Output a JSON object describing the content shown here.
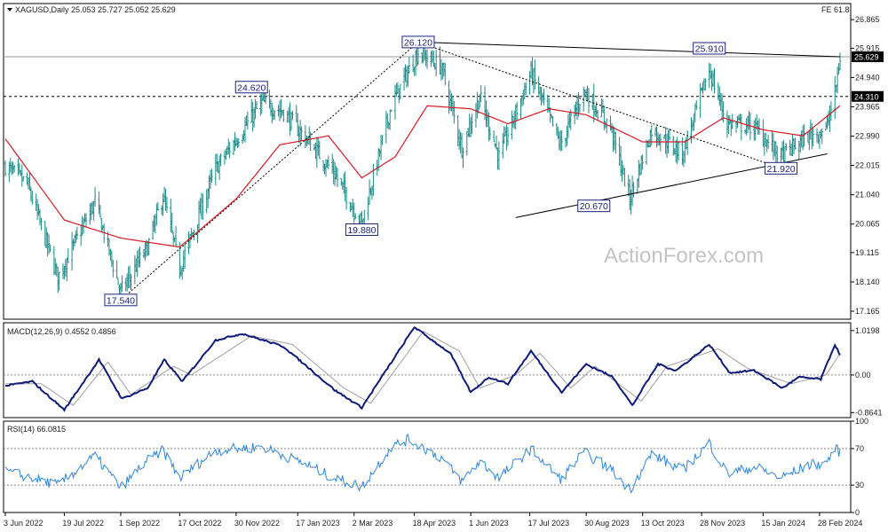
{
  "header": {
    "symbol_line": "XAGUSD,Daily  25.053 25.727 25.052 25.629",
    "fe_label": "FE 61.8",
    "watermark": "ActionForex.com"
  },
  "colors": {
    "bars": "#1e8a88",
    "ma": "#d81b24",
    "macd_line": "#0d1a7a",
    "macd_signal": "#a0a0a0",
    "rsi": "#2e86de",
    "trendline": "#000000",
    "label_border": "#1a237e",
    "label_bg": "#ffffff",
    "current_price_bg": "#000000"
  },
  "chart_data": [
    {
      "type": "candlestick",
      "panel": "price",
      "title": "XAGUSD,Daily",
      "y_ticks": [
        26.865,
        25.915,
        24.94,
        23.965,
        22.99,
        22.015,
        21.04,
        20.065,
        19.115,
        18.14,
        17.165
      ],
      "ylim": [
        16.9,
        27.4
      ],
      "x_ticks": [
        "3 Jun 2022",
        "19 Jul 2022",
        "1 Sep 2022",
        "17 Oct 2022",
        "30 Nov 2022",
        "17 Jan 2023",
        "2 Mar 2023",
        "18 Apr 2023",
        "1 Jun 2023",
        "17 Jul 2023",
        "30 Aug 2023",
        "13 Oct 2023",
        "28 Nov 2023",
        "15 Jan 2024",
        "28 Feb 2024"
      ],
      "current_price": 25.629,
      "horizontal_levels": [
        {
          "value": 24.31,
          "style": "dashed"
        },
        {
          "value": 25.629,
          "style": "solid"
        }
      ],
      "annotations": [
        {
          "label": "17.540",
          "date": "2022-09-01",
          "value": 17.54
        },
        {
          "label": "24.620",
          "date": "2022-12-12",
          "value": 24.62
        },
        {
          "label": "19.880",
          "date": "2023-03-08",
          "value": 19.88
        },
        {
          "label": "26.120",
          "date": "2023-04-21",
          "value": 26.12
        },
        {
          "label": "20.670",
          "date": "2023-09-05",
          "value": 20.67
        },
        {
          "label": "25.910",
          "date": "2023-12-04",
          "value": 25.91
        },
        {
          "label": "21.920",
          "date": "2024-01-29",
          "value": 21.92
        }
      ],
      "trendlines": [
        {
          "style": "solid",
          "from": {
            "date": "2023-04-21",
            "value": 26.12
          },
          "to": {
            "date": "2024-03-15",
            "value": 25.63
          }
        },
        {
          "style": "solid",
          "from": {
            "date": "2023-07-06",
            "value": 20.28
          },
          "to": {
            "date": "2024-03-05",
            "value": 22.4
          }
        },
        {
          "style": "dotted",
          "from": {
            "date": "2022-09-01",
            "value": 17.54
          },
          "to": {
            "date": "2023-04-21",
            "value": 26.12
          }
        },
        {
          "style": "dotted",
          "from": {
            "date": "2023-04-21",
            "value": 26.12
          },
          "to": {
            "date": "2024-01-29",
            "value": 21.92
          }
        }
      ],
      "price_anchors": [
        {
          "date": "2022-06-03",
          "value": 22.0
        },
        {
          "date": "2022-06-20",
          "value": 21.4
        },
        {
          "date": "2022-07-14",
          "value": 18.3
        },
        {
          "date": "2022-08-12",
          "value": 20.8
        },
        {
          "date": "2022-09-01",
          "value": 17.8
        },
        {
          "date": "2022-09-22",
          "value": 19.3
        },
        {
          "date": "2022-10-04",
          "value": 21.0
        },
        {
          "date": "2022-10-17",
          "value": 18.6
        },
        {
          "date": "2022-11-14",
          "value": 21.9
        },
        {
          "date": "2022-12-20",
          "value": 24.1
        },
        {
          "date": "2023-01-06",
          "value": 23.8
        },
        {
          "date": "2023-02-14",
          "value": 21.8
        },
        {
          "date": "2023-03-08",
          "value": 20.1
        },
        {
          "date": "2023-03-31",
          "value": 24.0
        },
        {
          "date": "2023-04-21",
          "value": 25.8
        },
        {
          "date": "2023-05-09",
          "value": 25.3
        },
        {
          "date": "2023-05-25",
          "value": 22.6
        },
        {
          "date": "2023-06-08",
          "value": 24.3
        },
        {
          "date": "2023-06-23",
          "value": 22.3
        },
        {
          "date": "2023-07-18",
          "value": 25.1
        },
        {
          "date": "2023-08-10",
          "value": 22.7
        },
        {
          "date": "2023-08-28",
          "value": 24.5
        },
        {
          "date": "2023-09-18",
          "value": 23.3
        },
        {
          "date": "2023-10-03",
          "value": 20.9
        },
        {
          "date": "2023-10-20",
          "value": 23.2
        },
        {
          "date": "2023-11-13",
          "value": 22.4
        },
        {
          "date": "2023-12-04",
          "value": 25.2
        },
        {
          "date": "2023-12-18",
          "value": 23.4
        },
        {
          "date": "2024-01-08",
          "value": 23.3
        },
        {
          "date": "2024-01-29",
          "value": 22.3
        },
        {
          "date": "2024-02-19",
          "value": 23.0
        },
        {
          "date": "2024-03-04",
          "value": 23.2
        },
        {
          "date": "2024-03-11",
          "value": 24.4
        },
        {
          "date": "2024-03-15",
          "value": 25.6
        }
      ],
      "series": [
        {
          "name": "",
          "type": "moving_average",
          "values_anchors": [
            {
              "date": "2022-06-03",
              "value": 22.9
            },
            {
              "date": "2022-07-19",
              "value": 20.2
            },
            {
              "date": "2022-09-01",
              "value": 19.6
            },
            {
              "date": "2022-10-17",
              "value": 19.3
            },
            {
              "date": "2022-11-30",
              "value": 20.9
            },
            {
              "date": "2023-01-03",
              "value": 22.7
            },
            {
              "date": "2023-02-10",
              "value": 23.0
            },
            {
              "date": "2023-03-08",
              "value": 21.6
            },
            {
              "date": "2023-04-03",
              "value": 22.3
            },
            {
              "date": "2023-04-28",
              "value": 24.0
            },
            {
              "date": "2023-06-01",
              "value": 23.9
            },
            {
              "date": "2023-06-30",
              "value": 23.4
            },
            {
              "date": "2023-08-01",
              "value": 23.9
            },
            {
              "date": "2023-08-30",
              "value": 23.7
            },
            {
              "date": "2023-10-13",
              "value": 22.8
            },
            {
              "date": "2023-11-15",
              "value": 22.8
            },
            {
              "date": "2023-12-15",
              "value": 23.6
            },
            {
              "date": "2024-01-15",
              "value": 23.2
            },
            {
              "date": "2024-02-15",
              "value": 23.0
            },
            {
              "date": "2024-03-15",
              "value": 24.0
            }
          ]
        }
      ]
    },
    {
      "type": "line",
      "panel": "macd",
      "title": "MACD(12,26,9) 0.4552 0.4856",
      "y_ticks": [
        1.0198,
        0.0,
        -0.8641
      ],
      "ylim": [
        -0.98,
        1.2
      ],
      "series": [
        {
          "name": "MACD",
          "values_anchors": [
            {
              "date": "2022-06-03",
              "value": -0.25
            },
            {
              "date": "2022-06-24",
              "value": -0.15
            },
            {
              "date": "2022-07-19",
              "value": -0.8
            },
            {
              "date": "2022-08-15",
              "value": 0.35
            },
            {
              "date": "2022-09-02",
              "value": -0.55
            },
            {
              "date": "2022-09-22",
              "value": -0.3
            },
            {
              "date": "2022-10-05",
              "value": 0.35
            },
            {
              "date": "2022-10-19",
              "value": -0.15
            },
            {
              "date": "2022-11-14",
              "value": 0.8
            },
            {
              "date": "2022-12-05",
              "value": 0.95
            },
            {
              "date": "2023-01-06",
              "value": 0.65
            },
            {
              "date": "2023-02-15",
              "value": -0.35
            },
            {
              "date": "2023-03-08",
              "value": -0.75
            },
            {
              "date": "2023-04-18",
              "value": 1.1
            },
            {
              "date": "2023-05-16",
              "value": 0.5
            },
            {
              "date": "2023-06-01",
              "value": -0.4
            },
            {
              "date": "2023-06-15",
              "value": -0.05
            },
            {
              "date": "2023-06-30",
              "value": -0.2
            },
            {
              "date": "2023-07-18",
              "value": 0.55
            },
            {
              "date": "2023-08-11",
              "value": -0.4
            },
            {
              "date": "2023-08-30",
              "value": 0.25
            },
            {
              "date": "2023-09-20",
              "value": -0.05
            },
            {
              "date": "2023-10-05",
              "value": -0.7
            },
            {
              "date": "2023-10-25",
              "value": 0.25
            },
            {
              "date": "2023-11-08",
              "value": 0.1
            },
            {
              "date": "2023-12-04",
              "value": 0.7
            },
            {
              "date": "2023-12-20",
              "value": 0.05
            },
            {
              "date": "2024-01-08",
              "value": 0.1
            },
            {
              "date": "2024-01-30",
              "value": -0.3
            },
            {
              "date": "2024-02-12",
              "value": -0.05
            },
            {
              "date": "2024-02-29",
              "value": -0.1
            },
            {
              "date": "2024-03-11",
              "value": 0.7
            },
            {
              "date": "2024-03-15",
              "value": 0.46
            }
          ]
        },
        {
          "name": "Signal",
          "values_anchors": [
            {
              "date": "2022-06-03",
              "value": -0.2
            },
            {
              "date": "2022-07-01",
              "value": -0.2
            },
            {
              "date": "2022-07-26",
              "value": -0.7
            },
            {
              "date": "2022-08-22",
              "value": 0.3
            },
            {
              "date": "2022-09-09",
              "value": -0.45
            },
            {
              "date": "2022-10-12",
              "value": 0.2
            },
            {
              "date": "2022-10-26",
              "value": 0.0
            },
            {
              "date": "2022-12-12",
              "value": 0.9
            },
            {
              "date": "2023-01-13",
              "value": 0.7
            },
            {
              "date": "2023-02-22",
              "value": -0.3
            },
            {
              "date": "2023-03-15",
              "value": -0.65
            },
            {
              "date": "2023-04-25",
              "value": 1.0
            },
            {
              "date": "2023-05-23",
              "value": 0.55
            },
            {
              "date": "2023-06-08",
              "value": -0.3
            },
            {
              "date": "2023-07-06",
              "value": 0.0
            },
            {
              "date": "2023-07-25",
              "value": 0.5
            },
            {
              "date": "2023-08-18",
              "value": -0.3
            },
            {
              "date": "2023-09-06",
              "value": 0.2
            },
            {
              "date": "2023-10-12",
              "value": -0.6
            },
            {
              "date": "2023-11-01",
              "value": 0.2
            },
            {
              "date": "2023-12-11",
              "value": 0.6
            },
            {
              "date": "2024-01-03",
              "value": 0.15
            },
            {
              "date": "2024-02-06",
              "value": -0.2
            },
            {
              "date": "2024-03-04",
              "value": 0.0
            },
            {
              "date": "2024-03-15",
              "value": 0.49
            }
          ]
        }
      ]
    },
    {
      "type": "line",
      "panel": "rsi",
      "title": "RSI(14) 66.0815",
      "y_ticks": [
        100,
        70,
        30,
        0
      ],
      "ylim": [
        0,
        100
      ],
      "series": [
        {
          "name": "RSI(14)",
          "values_anchors": [
            {
              "date": "2022-06-03",
              "value": 45
            },
            {
              "date": "2022-06-24",
              "value": 38
            },
            {
              "date": "2022-07-14",
              "value": 30
            },
            {
              "date": "2022-08-12",
              "value": 62
            },
            {
              "date": "2022-09-01",
              "value": 27
            },
            {
              "date": "2022-09-20",
              "value": 55
            },
            {
              "date": "2022-10-04",
              "value": 68
            },
            {
              "date": "2022-10-17",
              "value": 38
            },
            {
              "date": "2022-11-14",
              "value": 68
            },
            {
              "date": "2022-12-20",
              "value": 72
            },
            {
              "date": "2023-01-20",
              "value": 55
            },
            {
              "date": "2023-02-14",
              "value": 38
            },
            {
              "date": "2023-03-08",
              "value": 28
            },
            {
              "date": "2023-03-31",
              "value": 72
            },
            {
              "date": "2023-04-14",
              "value": 80
            },
            {
              "date": "2023-05-09",
              "value": 60
            },
            {
              "date": "2023-05-25",
              "value": 34
            },
            {
              "date": "2023-06-08",
              "value": 56
            },
            {
              "date": "2023-06-23",
              "value": 38
            },
            {
              "date": "2023-07-18",
              "value": 70
            },
            {
              "date": "2023-08-10",
              "value": 36
            },
            {
              "date": "2023-08-28",
              "value": 66
            },
            {
              "date": "2023-09-18",
              "value": 48
            },
            {
              "date": "2023-10-03",
              "value": 25
            },
            {
              "date": "2023-10-20",
              "value": 64
            },
            {
              "date": "2023-11-13",
              "value": 46
            },
            {
              "date": "2023-12-04",
              "value": 76
            },
            {
              "date": "2023-12-18",
              "value": 42
            },
            {
              "date": "2024-01-08",
              "value": 50
            },
            {
              "date": "2024-01-29",
              "value": 38
            },
            {
              "date": "2024-02-19",
              "value": 52
            },
            {
              "date": "2024-03-04",
              "value": 54
            },
            {
              "date": "2024-03-11",
              "value": 70
            },
            {
              "date": "2024-03-15",
              "value": 66
            }
          ]
        }
      ]
    }
  ]
}
